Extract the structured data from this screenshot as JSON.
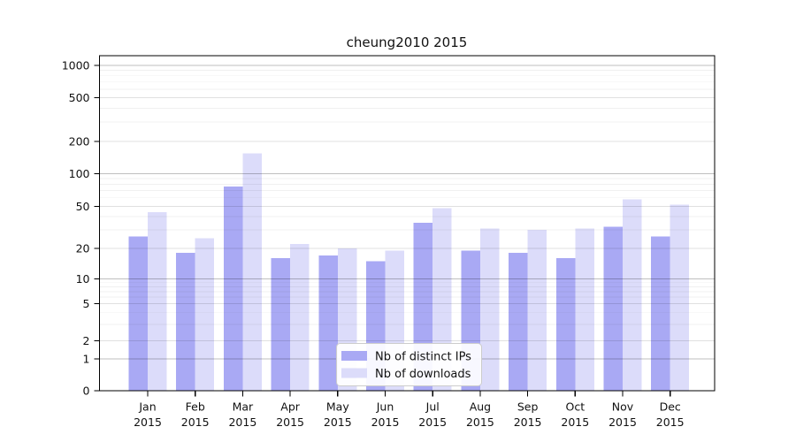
{
  "figure": {
    "background": "#ffffff"
  },
  "chart_data": {
    "type": "bar",
    "title": "cheung2010 2015",
    "categories": [
      "Jan",
      "Feb",
      "Mar",
      "Apr",
      "May",
      "Jun",
      "Jul",
      "Aug",
      "Sep",
      "Oct",
      "Nov",
      "Dec"
    ],
    "category_year": "2015",
    "series": [
      {
        "name": "Nb of distinct IPs",
        "color": "#a9a9f4",
        "values": [
          26,
          18,
          76,
          16,
          17,
          15,
          35,
          19,
          18,
          16,
          32,
          26
        ]
      },
      {
        "name": "Nb of downloads",
        "color": "#dcdcfa",
        "values": [
          44,
          25,
          155,
          22,
          20,
          19,
          48,
          31,
          30,
          31,
          58,
          52
        ]
      }
    ],
    "xlabel": "",
    "ylabel": "",
    "yscale": "symlog",
    "ylim": [
      0,
      1200
    ],
    "yticks": [
      0,
      1,
      2,
      5,
      10,
      20,
      50,
      100,
      200,
      500,
      1000
    ],
    "ytick_labels": [
      "0",
      "1",
      "2",
      "5",
      "10",
      "20",
      "50",
      "100",
      "200",
      "500",
      "1000"
    ],
    "minor_gridlines": [
      3,
      4,
      6,
      7,
      8,
      9,
      30,
      40,
      60,
      70,
      80,
      90,
      300,
      400,
      600,
      700,
      800,
      900
    ],
    "grid": "horizontal",
    "legend_position": "lower center"
  },
  "colors": {
    "spine": "#000000",
    "grid_major": "rgba(0,0,0,0.25)",
    "grid_labeled": "rgba(0,0,0,0.12)",
    "grid_minor": "rgba(0,0,0,0.06)",
    "legend_border": "#cccccc",
    "legend_bg": "#ffffff"
  }
}
